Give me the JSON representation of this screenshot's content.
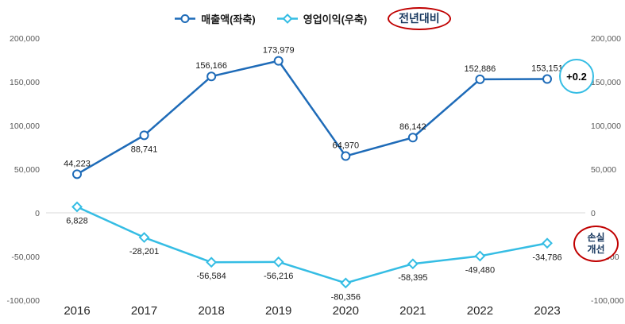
{
  "chart_data": {
    "type": "line",
    "title": "",
    "categories": [
      "2016",
      "2017",
      "2018",
      "2019",
      "2020",
      "2021",
      "2022",
      "2023"
    ],
    "series": [
      {
        "name": "매출액(좌축)",
        "axis": "left",
        "values": [
          44223,
          88741,
          156166,
          173979,
          64970,
          86142,
          152886,
          153151
        ],
        "color": "#1e6bb8",
        "marker": "circle",
        "label_positions": [
          "above",
          "below",
          "above",
          "above",
          "above",
          "above",
          "above",
          "above"
        ]
      },
      {
        "name": "영업이익(우축)",
        "axis": "right",
        "values": [
          6828,
          -28201,
          -56584,
          -56216,
          -80356,
          -58395,
          -49480,
          -34786
        ],
        "color": "#35bde4",
        "marker": "diamond",
        "label_positions": [
          "below",
          "below",
          "below",
          "below",
          "below",
          "below",
          "below",
          "below"
        ]
      }
    ],
    "axes": {
      "left_ylim": [
        -100000,
        200000
      ],
      "right_ylim": [
        -100000,
        200000
      ],
      "ytick_step": 50000
    },
    "grid": "zero-line-only",
    "legend_position": "top-center",
    "callouts": {
      "yoy_label": "전년대비",
      "yoy_value": "+0.2",
      "loss_line1": "손실",
      "loss_line2": "개선"
    },
    "colors": {
      "revenue_line": "#1e6bb8",
      "profit_line": "#35bde4",
      "callout_red": "#c00000",
      "callout_cyan": "#35bde4",
      "tick_text": "#595959",
      "data_label_text": "#1a1a1a",
      "zero_gridline": "#d9d9d9"
    }
  }
}
